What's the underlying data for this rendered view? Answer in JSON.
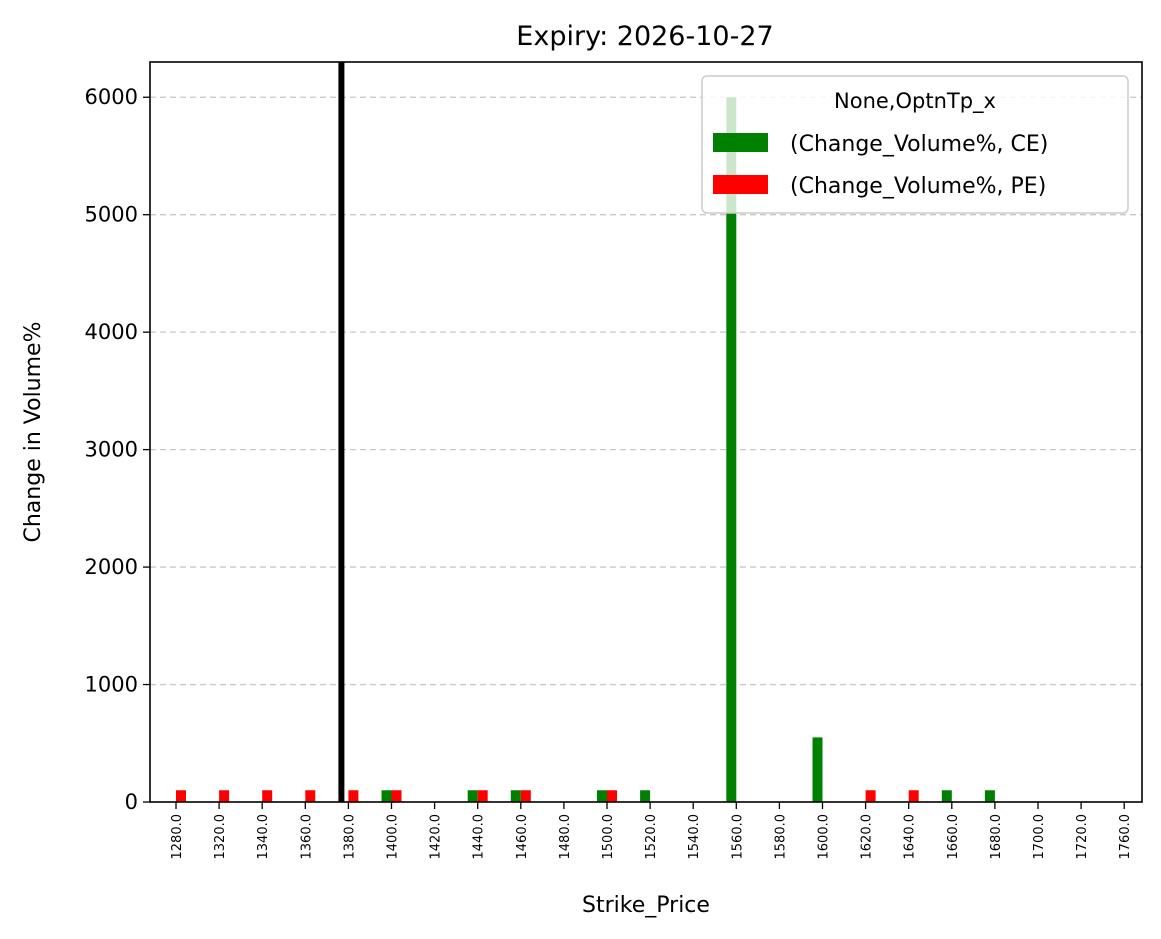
{
  "chart_data": {
    "type": "bar",
    "title": "Expiry: 2026-10-27",
    "xlabel": "Strike_Price",
    "ylabel": "Change in Volume%",
    "ylim": [
      0,
      6300
    ],
    "yticks": [
      "0",
      "1000",
      "2000",
      "3000",
      "4000",
      "5000",
      "6000"
    ],
    "categories": [
      "1280.0",
      "1320.0",
      "1340.0",
      "1360.0",
      "1380.0",
      "1400.0",
      "1420.0",
      "1440.0",
      "1460.0",
      "1480.0",
      "1500.0",
      "1520.0",
      "1540.0",
      "1560.0",
      "1580.0",
      "1600.0",
      "1620.0",
      "1640.0",
      "1660.0",
      "1680.0",
      "1700.0",
      "1720.0",
      "1760.0"
    ],
    "series": [
      {
        "name": "(Change_Volume%, CE)",
        "color": "#008000",
        "values": [
          0,
          0,
          0,
          0,
          0,
          100,
          0,
          100,
          100,
          0,
          100,
          100,
          0,
          6000,
          0,
          550,
          0,
          0,
          100,
          100,
          0,
          0,
          0
        ]
      },
      {
        "name": "(Change_Volume%, PE)",
        "color": "#ff0000",
        "values": [
          100,
          100,
          100,
          100,
          100,
          100,
          0,
          100,
          100,
          0,
          100,
          0,
          0,
          0,
          0,
          0,
          100,
          100,
          0,
          0,
          0,
          0,
          0
        ]
      }
    ],
    "vertical_line": {
      "category": "1380.0",
      "color": "#000000"
    },
    "legend": {
      "title": "None,OptnTp_x",
      "placement": "upper right"
    },
    "grid": {
      "y": true,
      "x": false,
      "style": "dashed"
    }
  }
}
